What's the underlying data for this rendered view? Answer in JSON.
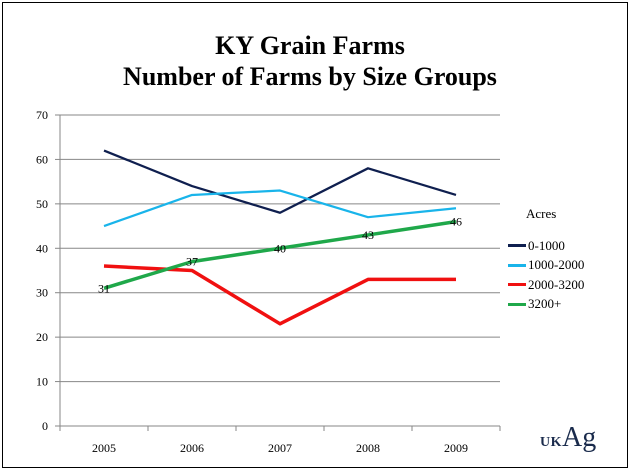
{
  "chart_data": {
    "type": "line",
    "title_line1": "KY Grain Farms",
    "title_line2": "Number of Farms by Size Groups",
    "categories": [
      "2005",
      "2006",
      "2007",
      "2008",
      "2009"
    ],
    "ylim": [
      0,
      70
    ],
    "yticks": [
      0,
      10,
      20,
      30,
      40,
      50,
      60,
      70
    ],
    "grid": true,
    "legend_title": "Acres",
    "legend_position": "right",
    "series": [
      {
        "name": "0-1000",
        "color": "#0f1f4f",
        "values": [
          62,
          54,
          48,
          58,
          52
        ],
        "labeled": false
      },
      {
        "name": "1000-2000",
        "color": "#19b4ea",
        "values": [
          45,
          52,
          53,
          47,
          49
        ],
        "labeled": false
      },
      {
        "name": "2000-3200",
        "color": "#f01010",
        "values": [
          36,
          35,
          23,
          33,
          33
        ],
        "labeled": false
      },
      {
        "name": "3200+",
        "color": "#1fa84a",
        "values": [
          31,
          37,
          40,
          43,
          46
        ],
        "labeled": true
      }
    ],
    "data_labels": [
      "31",
      "37",
      "40",
      "43",
      "46"
    ]
  },
  "logo": {
    "part1": "UK",
    "part2": "Ag"
  }
}
